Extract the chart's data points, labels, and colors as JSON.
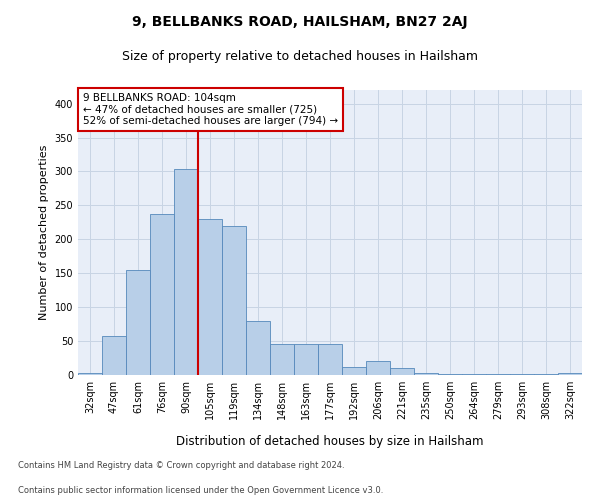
{
  "title": "9, BELLBANKS ROAD, HAILSHAM, BN27 2AJ",
  "subtitle": "Size of property relative to detached houses in Hailsham",
  "xlabel": "Distribution of detached houses by size in Hailsham",
  "ylabel": "Number of detached properties",
  "categories": [
    "32sqm",
    "47sqm",
    "61sqm",
    "76sqm",
    "90sqm",
    "105sqm",
    "119sqm",
    "134sqm",
    "148sqm",
    "163sqm",
    "177sqm",
    "192sqm",
    "206sqm",
    "221sqm",
    "235sqm",
    "250sqm",
    "264sqm",
    "279sqm",
    "293sqm",
    "308sqm",
    "322sqm"
  ],
  "values": [
    3,
    57,
    155,
    237,
    303,
    230,
    220,
    80,
    45,
    45,
    45,
    12,
    20,
    10,
    3,
    1,
    1,
    1,
    1,
    1,
    3
  ],
  "bar_color": "#b8cfe8",
  "bar_edge_color": "#5588bb",
  "highlight_line_color": "#cc0000",
  "highlight_line_xindex": 4,
  "annotation_text": "9 BELLBANKS ROAD: 104sqm\n← 47% of detached houses are smaller (725)\n52% of semi-detached houses are larger (794) →",
  "annotation_box_color": "#ffffff",
  "annotation_box_edge_color": "#cc0000",
  "ylim": [
    0,
    420
  ],
  "yticks": [
    0,
    50,
    100,
    150,
    200,
    250,
    300,
    350,
    400
  ],
  "grid_color": "#c8d4e4",
  "background_color": "#e8eef8",
  "footer_line1": "Contains HM Land Registry data © Crown copyright and database right 2024.",
  "footer_line2": "Contains public sector information licensed under the Open Government Licence v3.0.",
  "title_fontsize": 10,
  "subtitle_fontsize": 9,
  "tick_fontsize": 7,
  "ylabel_fontsize": 8,
  "xlabel_fontsize": 8.5,
  "annotation_fontsize": 7.5,
  "footer_fontsize": 6
}
